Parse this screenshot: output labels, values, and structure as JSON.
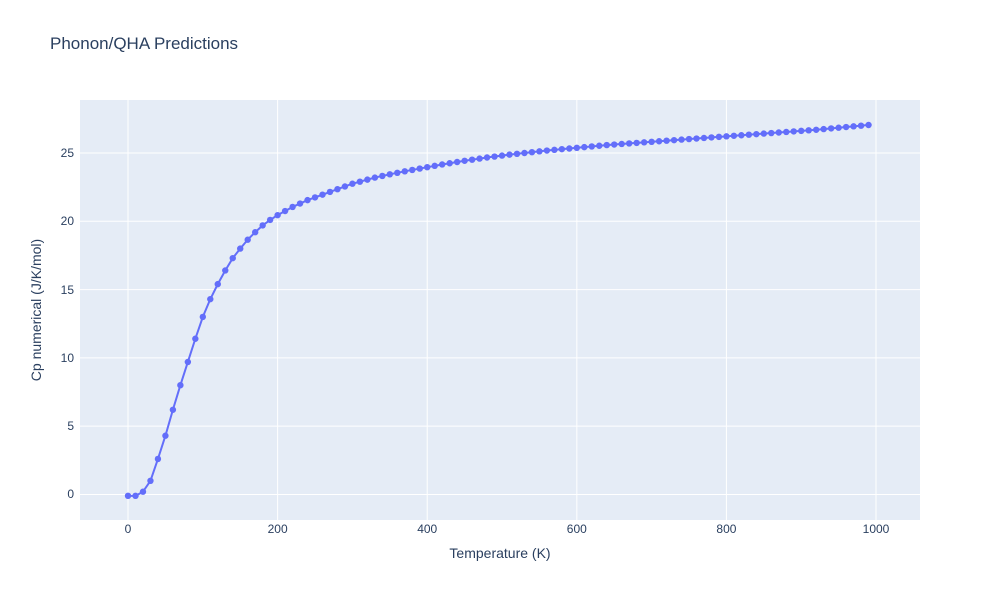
{
  "chart_data": {
    "type": "line",
    "mode": "lines+markers",
    "title": "Phonon/QHA Predictions",
    "xlabel": "Temperature (K)",
    "ylabel": "Cp numerical (J/K/mol)",
    "series_name": "Cp numerical",
    "x": [
      0,
      10,
      20,
      30,
      40,
      50,
      60,
      70,
      80,
      90,
      100,
      110,
      120,
      130,
      140,
      150,
      160,
      170,
      180,
      190,
      200,
      210,
      220,
      230,
      240,
      250,
      260,
      270,
      280,
      290,
      300,
      310,
      320,
      330,
      340,
      350,
      360,
      370,
      380,
      390,
      400,
      410,
      420,
      430,
      440,
      450,
      460,
      470,
      480,
      490,
      500,
      510,
      520,
      530,
      540,
      550,
      560,
      570,
      580,
      590,
      600,
      610,
      620,
      630,
      640,
      650,
      660,
      670,
      680,
      690,
      700,
      710,
      720,
      730,
      740,
      750,
      760,
      770,
      780,
      790,
      800,
      810,
      820,
      830,
      840,
      850,
      860,
      870,
      880,
      890,
      900,
      910,
      920,
      930,
      940,
      950,
      960,
      970,
      980,
      990
    ],
    "y": [
      -0.1,
      -0.1,
      0.2,
      1.0,
      2.6,
      4.3,
      6.2,
      8.0,
      9.7,
      11.4,
      13.0,
      14.3,
      15.4,
      16.4,
      17.3,
      18.0,
      18.65,
      19.2,
      19.7,
      20.1,
      20.45,
      20.75,
      21.05,
      21.3,
      21.55,
      21.75,
      21.95,
      22.15,
      22.35,
      22.55,
      22.75,
      22.9,
      23.05,
      23.2,
      23.32,
      23.44,
      23.55,
      23.66,
      23.76,
      23.86,
      23.96,
      24.06,
      24.16,
      24.25,
      24.34,
      24.43,
      24.51,
      24.59,
      24.67,
      24.74,
      24.81,
      24.88,
      24.94,
      25.0,
      25.06,
      25.12,
      25.18,
      25.23,
      25.28,
      25.33,
      25.38,
      25.43,
      25.48,
      25.53,
      25.58,
      25.62,
      25.66,
      25.7,
      25.74,
      25.78,
      25.82,
      25.86,
      25.9,
      25.94,
      25.98,
      26.02,
      26.06,
      26.1,
      26.14,
      26.18,
      26.22,
      26.26,
      26.3,
      26.34,
      26.38,
      26.42,
      26.46,
      26.5,
      26.54,
      26.58,
      26.62,
      26.66,
      26.7,
      26.75,
      26.8,
      26.85,
      26.9,
      26.95,
      27.0,
      27.05
    ],
    "x_ticks": [
      0,
      200,
      400,
      600,
      800,
      1000
    ],
    "y_ticks": [
      0,
      5,
      10,
      15,
      20,
      25
    ],
    "x_range": [
      -64.2,
      1058.8
    ],
    "y_range": [
      -1.87,
      28.88
    ],
    "grid": true,
    "legend_position": "none",
    "colors": {
      "series": "#636efa",
      "plot_background": "#e5ecf6",
      "gridline": "#ffffff",
      "text": "#2a3f5f",
      "paper_background": "#ffffff"
    }
  }
}
